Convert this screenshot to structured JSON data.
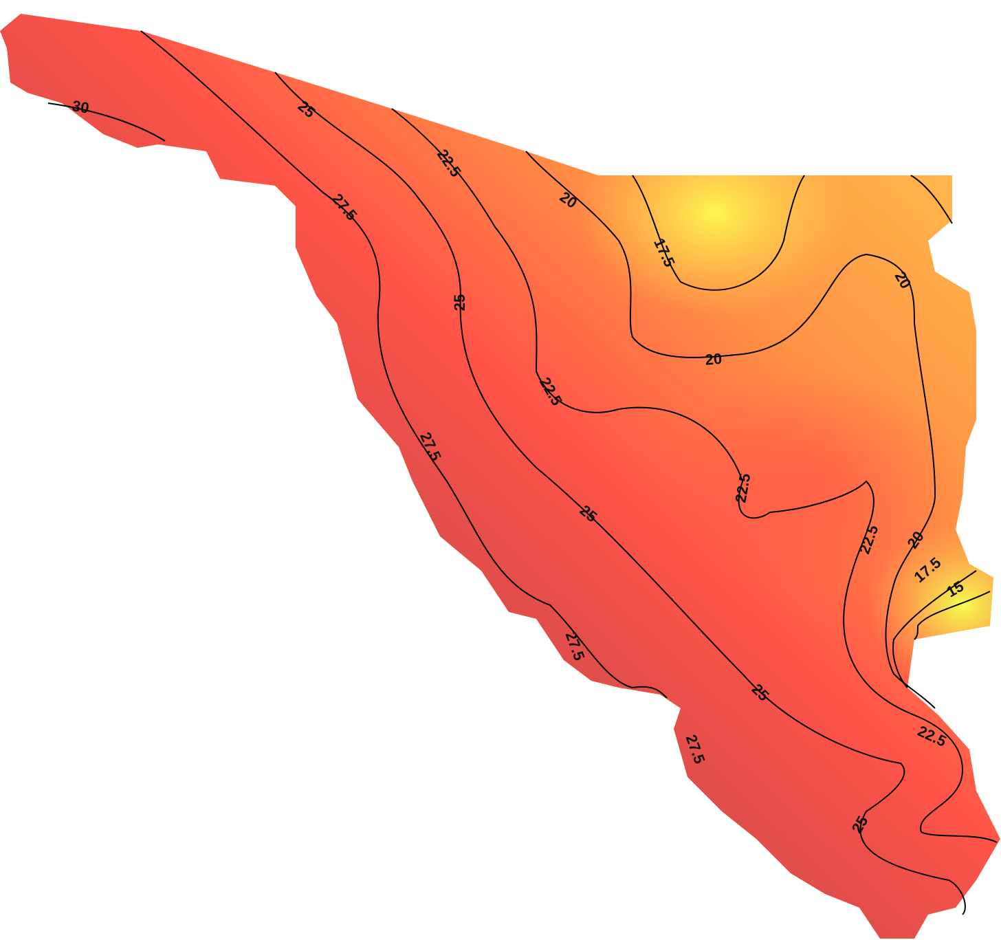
{
  "contour_labels": [
    30,
    25,
    22.5,
    20,
    17.5,
    20,
    27.5,
    25,
    20,
    22.5,
    27.5,
    22.5,
    25,
    22.5,
    20,
    17.5,
    15,
    27.5,
    25,
    27.5,
    22.5,
    25
  ]
}
